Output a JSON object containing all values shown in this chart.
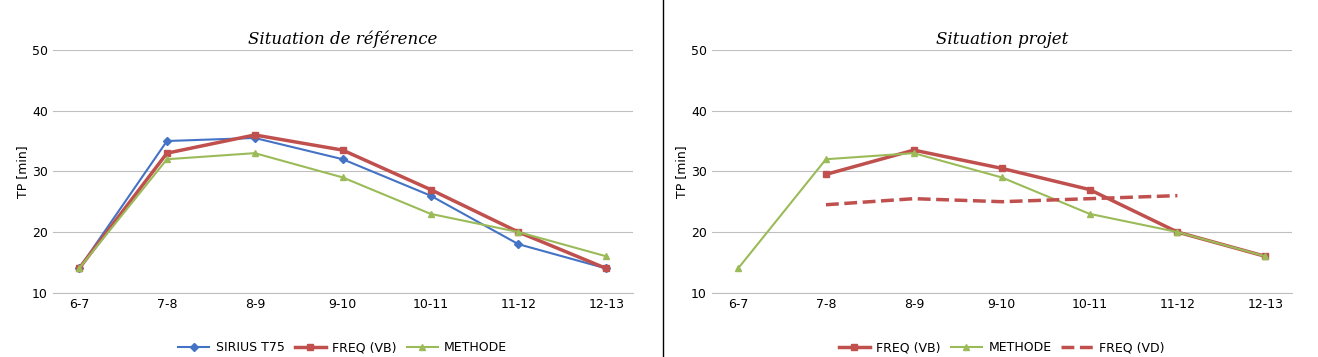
{
  "categories": [
    "6-7",
    "7-8",
    "8-9",
    "9-10",
    "10-11",
    "11-12",
    "12-13"
  ],
  "left_title": "Situation de référence",
  "right_title": "Situation projet",
  "ylabel": "TP [min]",
  "ylim": [
    10,
    50
  ],
  "yticks": [
    10,
    20,
    30,
    40,
    50
  ],
  "left_series": {
    "SIRIUS T75": {
      "values": [
        14,
        35,
        35.5,
        32,
        26,
        18,
        14
      ],
      "color": "#4472C4",
      "marker": "D",
      "linewidth": 1.5,
      "markersize": 4
    },
    "FREQ (VB)": {
      "values": [
        14,
        33,
        36,
        33.5,
        27,
        20,
        14
      ],
      "color": "#C0504D",
      "marker": "s",
      "linewidth": 2.5,
      "markersize": 5
    },
    "METHODE": {
      "values": [
        14,
        32,
        33,
        29,
        23,
        20,
        16
      ],
      "color": "#9BBB59",
      "marker": "^",
      "linewidth": 1.5,
      "markersize": 5
    }
  },
  "right_series": {
    "FREQ (VB)": {
      "values": [
        null,
        29.5,
        33.5,
        30.5,
        27,
        20,
        16
      ],
      "color": "#C0504D",
      "marker": "s",
      "linestyle": "-",
      "linewidth": 2.5,
      "markersize": 5
    },
    "METHODE": {
      "values": [
        14,
        32,
        33,
        29,
        23,
        20,
        16
      ],
      "color": "#9BBB59",
      "marker": "^",
      "linestyle": "-",
      "linewidth": 1.5,
      "markersize": 5
    },
    "FREQ (VD)": {
      "values": [
        null,
        24.5,
        25.5,
        25,
        25.5,
        26,
        null
      ],
      "color": "#C0504D",
      "marker": "none",
      "linestyle": "--",
      "linewidth": 2.5,
      "markersize": 0
    }
  },
  "background_color": "#ffffff",
  "grid_color": "#BFBFBF",
  "title_fontsize": 12,
  "axis_fontsize": 9,
  "tick_fontsize": 9,
  "legend_fontsize": 9
}
